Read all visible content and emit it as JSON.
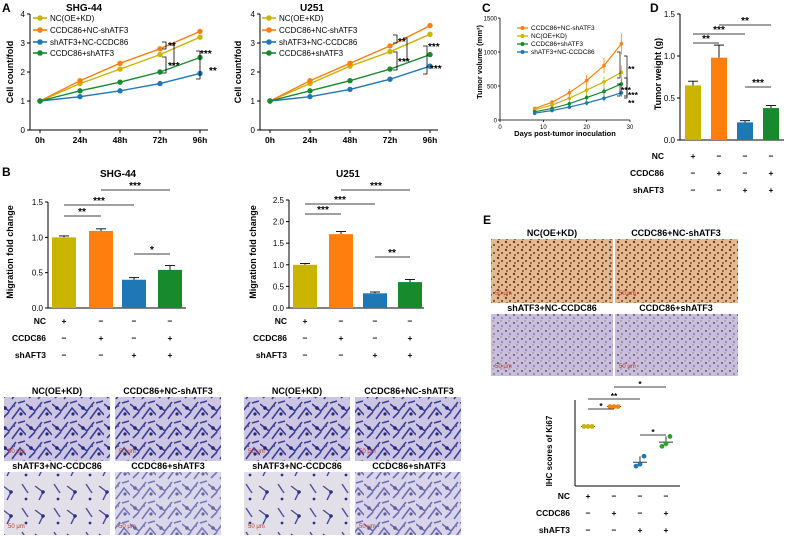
{
  "panel_letters": [
    "A",
    "B",
    "C",
    "D",
    "E"
  ],
  "colors": {
    "nc": "#c9b400",
    "shift3": "#ff7f0e",
    "shaftn": "#1f77b4",
    "combo": "#2ca02c",
    "combo_dk": "#178a2e"
  },
  "chart_data": [
    {
      "id": "A1",
      "type": "line",
      "title": "SHG-44",
      "ylabel": "Cell count/fold",
      "categories": [
        "0h",
        "24h",
        "48h",
        "72h",
        "96h"
      ],
      "ylim": [
        0,
        4
      ],
      "yticks": [
        "0",
        "1",
        "2",
        "3",
        "4"
      ],
      "series": [
        {
          "name": "NC(OE+KD)",
          "values": [
            1.0,
            1.6,
            2.1,
            2.6,
            3.2
          ]
        },
        {
          "name": "CCDC86+NC-shATF3",
          "values": [
            1.0,
            1.7,
            2.3,
            2.8,
            3.4
          ]
        },
        {
          "name": "shATF3+NC-CCDC86",
          "values": [
            1.0,
            1.15,
            1.35,
            1.6,
            1.95
          ]
        },
        {
          "name": "CCDC86+shATF3",
          "values": [
            1.0,
            1.35,
            1.65,
            2.0,
            2.5
          ]
        }
      ],
      "annotations": [
        "**",
        "***",
        "***",
        "**"
      ]
    },
    {
      "id": "A2",
      "type": "line",
      "title": "U251",
      "ylabel": "Cell count/fold",
      "categories": [
        "0h",
        "24h",
        "48h",
        "72h",
        "96h"
      ],
      "ylim": [
        0,
        4
      ],
      "yticks": [
        "0",
        "1",
        "2",
        "3",
        "4"
      ],
      "series": [
        {
          "name": "NC(OE+KD)",
          "values": [
            1.0,
            1.6,
            2.2,
            2.7,
            3.3
          ]
        },
        {
          "name": "CCDC86+NC-shATF3",
          "values": [
            1.0,
            1.7,
            2.3,
            2.9,
            3.6
          ]
        },
        {
          "name": "shATF3+NC-CCDC86",
          "values": [
            1.0,
            1.15,
            1.4,
            1.75,
            2.2
          ]
        },
        {
          "name": "CCDC86+shATF3",
          "values": [
            1.0,
            1.35,
            1.7,
            2.1,
            2.6
          ]
        }
      ],
      "annotations": [
        "**",
        "***",
        "***",
        "***"
      ]
    },
    {
      "id": "C",
      "type": "line",
      "title": "",
      "ylabel": "Tumor volume (mm³)",
      "xlabel": "Days post-tumor inoculation",
      "xlim": [
        0,
        30
      ],
      "ylim": [
        0,
        1500
      ],
      "xticks": [
        "0",
        "10",
        "20",
        "30"
      ],
      "yticks": [
        "0",
        "500",
        "1000",
        "1500"
      ],
      "x": [
        8,
        12,
        16,
        20,
        24,
        28
      ],
      "series": [
        {
          "name": "CCDC86+NC-shATF3",
          "values": [
            170,
            260,
            400,
            580,
            800,
            1120
          ]
        },
        {
          "name": "NC(OE+KD)",
          "values": [
            150,
            220,
            320,
            440,
            560,
            700
          ]
        },
        {
          "name": "CCDC86+shATF3",
          "values": [
            120,
            170,
            240,
            330,
            420,
            530
          ]
        },
        {
          "name": "shATF3+NC-CCDC86",
          "values": [
            100,
            140,
            190,
            250,
            320,
            400
          ]
        }
      ],
      "annotations": [
        "**",
        "**",
        "***",
        "***"
      ]
    },
    {
      "id": "D",
      "type": "bar",
      "title": "",
      "ylabel": "Tumor weight (g)",
      "ylim": [
        0,
        1.5
      ],
      "yticks": [
        "0.0",
        "0.5",
        "1.0",
        "1.5"
      ],
      "values": [
        0.65,
        0.98,
        0.21,
        0.38
      ],
      "errors": [
        0.05,
        0.15,
        0.02,
        0.03
      ],
      "annotations": [
        "**",
        "***",
        "**",
        "***"
      ]
    },
    {
      "id": "B1",
      "type": "bar",
      "title": "SHG-44",
      "ylabel": "Migration fold change",
      "ylim": [
        0,
        1.5
      ],
      "yticks": [
        "0.0",
        "0.5",
        "1.0",
        "1.5"
      ],
      "values": [
        1.0,
        1.09,
        0.4,
        0.54
      ],
      "errors": [
        0.02,
        0.03,
        0.03,
        0.06
      ],
      "annotations": [
        "**",
        "***",
        "***",
        "*"
      ]
    },
    {
      "id": "B2",
      "type": "bar",
      "title": "U251",
      "ylabel": "Migration fold change",
      "ylim": [
        0,
        2.5
      ],
      "yticks": [
        "0.0",
        "0.5",
        "1.0",
        "1.5",
        "2.0",
        "2.5"
      ],
      "values": [
        1.0,
        1.71,
        0.34,
        0.6
      ],
      "errors": [
        0.03,
        0.06,
        0.03,
        0.06
      ],
      "annotations": [
        "***",
        "***",
        "***",
        "**"
      ]
    },
    {
      "id": "E",
      "type": "scatter",
      "title": "",
      "ylabel": "IHC scores of Ki67",
      "ylim": [
        0,
        13
      ],
      "points": [
        [
          9,
          9,
          9
        ],
        [
          12,
          12,
          12
        ],
        [
          3,
          3.3,
          4.5
        ],
        [
          6,
          6.4,
          7.5
        ]
      ],
      "annotations": [
        "*",
        "**",
        "*",
        "*"
      ]
    }
  ],
  "legend": {
    "labels": [
      "NC(OE+KD)",
      "CCDC86+NC-shATF3",
      "shATF3+NC-CCDC86",
      "CCDC86+shATF3"
    ]
  },
  "treatment": {
    "rows": [
      "NC",
      "CCDC86",
      "shAFT3"
    ],
    "signs": [
      [
        "+",
        "−",
        "−",
        "−"
      ],
      [
        "−",
        "+",
        "−",
        "+"
      ],
      [
        "−",
        "−",
        "+",
        "+"
      ]
    ]
  },
  "images": {
    "B_titles": [
      "NC(OE+KD)",
      "CCDC86+NC-shATF3",
      "shATF3+NC-CCDC86",
      "CCDC86+shATF3"
    ],
    "E_titles": [
      "NC(OE+KD)",
      "CCDC86+NC-shATF3",
      "shATF3+NC-CCDC86",
      "CCDC86+shATF3"
    ],
    "scale_bar": "50 μm"
  }
}
